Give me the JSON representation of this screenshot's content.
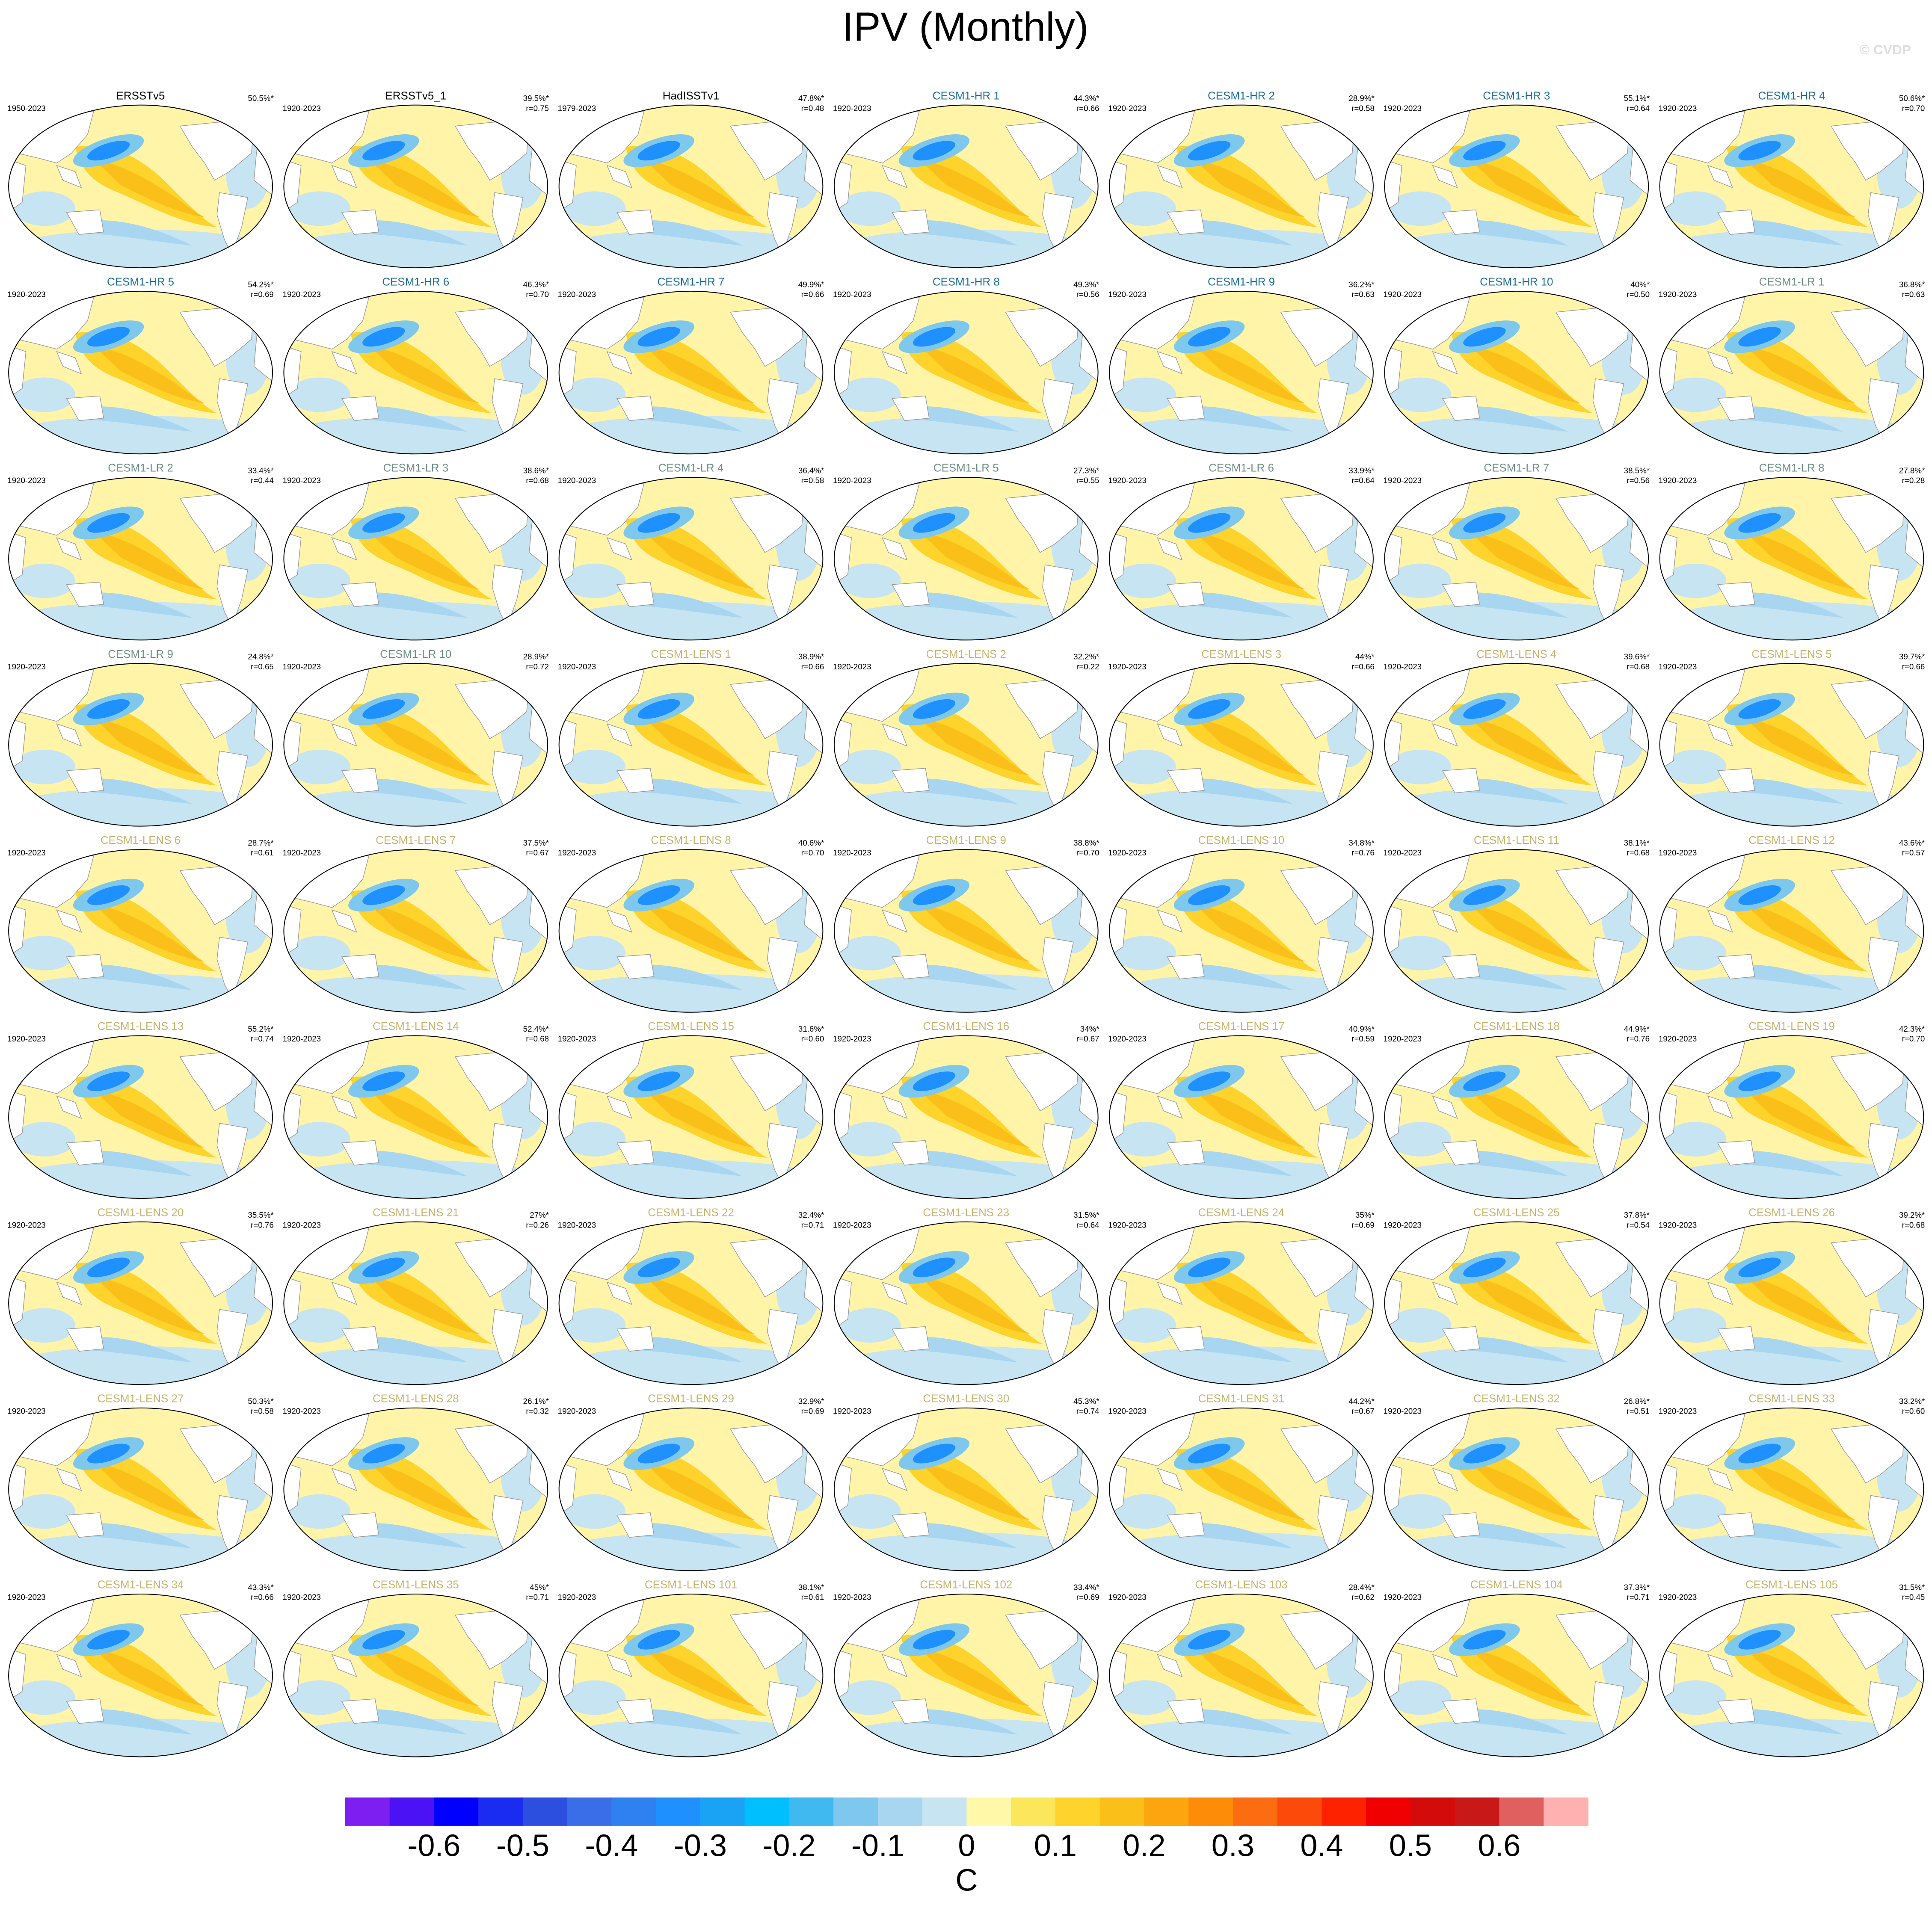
{
  "title": "IPV (Monthly)",
  "watermark": "© CVDP",
  "panels": [
    {
      "title": "ERSSTv5",
      "period": "1950-2023",
      "pct": "50.5%*",
      "color": "#000000"
    },
    {
      "title": "ERSSTv5_1",
      "period": "1920-2023",
      "pct": "39.5%*",
      "r": "r=0.75",
      "color": "#000000"
    },
    {
      "title": "HadISSTv1",
      "period": "1979-2023",
      "pct": "47.8%*",
      "r": "r=0.48",
      "color": "#000000"
    },
    {
      "title": "CESM1-HR 1",
      "period": "1920-2023",
      "pct": "44.3%*",
      "r": "r=0.66",
      "color": "#1f6f9a"
    },
    {
      "title": "CESM1-HR 2",
      "period": "1920-2023",
      "pct": "28.9%*",
      "r": "r=0.58",
      "color": "#1f6f9a"
    },
    {
      "title": "CESM1-HR 3",
      "period": "1920-2023",
      "pct": "55.1%*",
      "r": "r=0.64",
      "color": "#1f6f9a"
    },
    {
      "title": "CESM1-HR 4",
      "period": "1920-2023",
      "pct": "50.6%*",
      "r": "r=0.70",
      "color": "#1f6f9a"
    },
    {
      "title": "CESM1-HR 5",
      "period": "1920-2023",
      "pct": "54.2%*",
      "r": "r=0.69",
      "color": "#1f6f9a"
    },
    {
      "title": "CESM1-HR 6",
      "period": "1920-2023",
      "pct": "46.3%*",
      "r": "r=0.70",
      "color": "#1f6f9a"
    },
    {
      "title": "CESM1-HR 7",
      "period": "1920-2023",
      "pct": "49.9%*",
      "r": "r=0.66",
      "color": "#1f6f9a"
    },
    {
      "title": "CESM1-HR 8",
      "period": "1920-2023",
      "pct": "49.3%*",
      "r": "r=0.56",
      "color": "#1f6f9a"
    },
    {
      "title": "CESM1-HR 9",
      "period": "1920-2023",
      "pct": "36.2%*",
      "r": "r=0.63",
      "color": "#1f6f9a"
    },
    {
      "title": "CESM1-HR 10",
      "period": "1920-2023",
      "pct": "40%*",
      "r": "r=0.50",
      "color": "#1f6f9a"
    },
    {
      "title": "CESM1-LR 1",
      "period": "1920-2023",
      "pct": "36.8%*",
      "r": "r=0.63",
      "color": "#6e8f86"
    },
    {
      "title": "CESM1-LR 2",
      "period": "1920-2023",
      "pct": "33.4%*",
      "r": "r=0.44",
      "color": "#6e8f86"
    },
    {
      "title": "CESM1-LR 3",
      "period": "1920-2023",
      "pct": "38.6%*",
      "r": "r=0.68",
      "color": "#6e8f86"
    },
    {
      "title": "CESM1-LR 4",
      "period": "1920-2023",
      "pct": "36.4%*",
      "r": "r=0.58",
      "color": "#6e8f86"
    },
    {
      "title": "CESM1-LR 5",
      "period": "1920-2023",
      "pct": "27.3%*",
      "r": "r=0.55",
      "color": "#6e8f86"
    },
    {
      "title": "CESM1-LR 6",
      "period": "1920-2023",
      "pct": "33.9%*",
      "r": "r=0.64",
      "color": "#6e8f86"
    },
    {
      "title": "CESM1-LR 7",
      "period": "1920-2023",
      "pct": "38.5%*",
      "r": "r=0.56",
      "color": "#6e8f86"
    },
    {
      "title": "CESM1-LR 8",
      "period": "1920-2023",
      "pct": "27.8%*",
      "r": "r=0.28",
      "color": "#6e8f86"
    },
    {
      "title": "CESM1-LR 9",
      "period": "1920-2023",
      "pct": "24.8%*",
      "r": "r=0.65",
      "color": "#6e8f86"
    },
    {
      "title": "CESM1-LR 10",
      "period": "1920-2023",
      "pct": "28.9%*",
      "r": "r=0.72",
      "color": "#6e8f86"
    },
    {
      "title": "CESM1-LENS 1",
      "period": "1920-2023",
      "pct": "38.9%*",
      "r": "r=0.66",
      "color": "#c8b46e"
    },
    {
      "title": "CESM1-LENS 2",
      "period": "1920-2023",
      "pct": "32.2%*",
      "r": "r=0.22",
      "color": "#c8b46e"
    },
    {
      "title": "CESM1-LENS 3",
      "period": "1920-2023",
      "pct": "44%*",
      "r": "r=0.66",
      "color": "#c8b46e"
    },
    {
      "title": "CESM1-LENS 4",
      "period": "1920-2023",
      "pct": "39.6%*",
      "r": "r=0.68",
      "color": "#c8b46e"
    },
    {
      "title": "CESM1-LENS 5",
      "period": "1920-2023",
      "pct": "39.7%*",
      "r": "r=0.66",
      "color": "#c8b46e"
    },
    {
      "title": "CESM1-LENS 6",
      "period": "1920-2023",
      "pct": "28.7%*",
      "r": "r=0.61",
      "color": "#c8b46e"
    },
    {
      "title": "CESM1-LENS 7",
      "period": "1920-2023",
      "pct": "37.5%*",
      "r": "r=0.67",
      "color": "#c8b46e"
    },
    {
      "title": "CESM1-LENS 8",
      "period": "1920-2023",
      "pct": "40.6%*",
      "r": "r=0.70",
      "color": "#c8b46e"
    },
    {
      "title": "CESM1-LENS 9",
      "period": "1920-2023",
      "pct": "38.8%*",
      "r": "r=0.70",
      "color": "#c8b46e"
    },
    {
      "title": "CESM1-LENS 10",
      "period": "1920-2023",
      "pct": "34.8%*",
      "r": "r=0.76",
      "color": "#c8b46e"
    },
    {
      "title": "CESM1-LENS 11",
      "period": "1920-2023",
      "pct": "38.1%*",
      "r": "r=0.68",
      "color": "#c8b46e"
    },
    {
      "title": "CESM1-LENS 12",
      "period": "1920-2023",
      "pct": "43.6%*",
      "r": "r=0.57",
      "color": "#c8b46e"
    },
    {
      "title": "CESM1-LENS 13",
      "period": "1920-2023",
      "pct": "55.2%*",
      "r": "r=0.74",
      "color": "#c8b46e"
    },
    {
      "title": "CESM1-LENS 14",
      "period": "1920-2023",
      "pct": "52.4%*",
      "r": "r=0.68",
      "color": "#c8b46e"
    },
    {
      "title": "CESM1-LENS 15",
      "period": "1920-2023",
      "pct": "31.6%*",
      "r": "r=0.60",
      "color": "#c8b46e"
    },
    {
      "title": "CESM1-LENS 16",
      "period": "1920-2023",
      "pct": "34%*",
      "r": "r=0.67",
      "color": "#c8b46e"
    },
    {
      "title": "CESM1-LENS 17",
      "period": "1920-2023",
      "pct": "40.9%*",
      "r": "r=0.59",
      "color": "#c8b46e"
    },
    {
      "title": "CESM1-LENS 18",
      "period": "1920-2023",
      "pct": "44.9%*",
      "r": "r=0.76",
      "color": "#c8b46e"
    },
    {
      "title": "CESM1-LENS 19",
      "period": "1920-2023",
      "pct": "42.3%*",
      "r": "r=0.70",
      "color": "#c8b46e"
    },
    {
      "title": "CESM1-LENS 20",
      "period": "1920-2023",
      "pct": "35.5%*",
      "r": "r=0.76",
      "color": "#c8b46e"
    },
    {
      "title": "CESM1-LENS 21",
      "period": "1920-2023",
      "pct": "27%*",
      "r": "r=0.26",
      "color": "#c8b46e"
    },
    {
      "title": "CESM1-LENS 22",
      "period": "1920-2023",
      "pct": "32.4%*",
      "r": "r=0.71",
      "color": "#c8b46e"
    },
    {
      "title": "CESM1-LENS 23",
      "period": "1920-2023",
      "pct": "31.5%*",
      "r": "r=0.64",
      "color": "#c8b46e"
    },
    {
      "title": "CESM1-LENS 24",
      "period": "1920-2023",
      "pct": "35%*",
      "r": "r=0.69",
      "color": "#c8b46e"
    },
    {
      "title": "CESM1-LENS 25",
      "period": "1920-2023",
      "pct": "37.8%*",
      "r": "r=0.54",
      "color": "#c8b46e"
    },
    {
      "title": "CESM1-LENS 26",
      "period": "1920-2023",
      "pct": "39.2%*",
      "r": "r=0.68",
      "color": "#c8b46e"
    },
    {
      "title": "CESM1-LENS 27",
      "period": "1920-2023",
      "pct": "50.3%*",
      "r": "r=0.58",
      "color": "#c8b46e"
    },
    {
      "title": "CESM1-LENS 28",
      "period": "1920-2023",
      "pct": "26.1%*",
      "r": "r=0.32",
      "color": "#c8b46e"
    },
    {
      "title": "CESM1-LENS 29",
      "period": "1920-2023",
      "pct": "32.9%*",
      "r": "r=0.69",
      "color": "#c8b46e"
    },
    {
      "title": "CESM1-LENS 30",
      "period": "1920-2023",
      "pct": "45.3%*",
      "r": "r=0.74",
      "color": "#c8b46e"
    },
    {
      "title": "CESM1-LENS 31",
      "period": "1920-2023",
      "pct": "44.2%*",
      "r": "r=0.67",
      "color": "#c8b46e"
    },
    {
      "title": "CESM1-LENS 32",
      "period": "1920-2023",
      "pct": "26.8%*",
      "r": "r=0.51",
      "color": "#c8b46e"
    },
    {
      "title": "CESM1-LENS 33",
      "period": "1920-2023",
      "pct": "33.2%*",
      "r": "r=0.60",
      "color": "#c8b46e"
    },
    {
      "title": "CESM1-LENS 34",
      "period": "1920-2023",
      "pct": "43.3%*",
      "r": "r=0.66",
      "color": "#c8b46e"
    },
    {
      "title": "CESM1-LENS 35",
      "period": "1920-2023",
      "pct": "45%*",
      "r": "r=0.71",
      "color": "#c8b46e"
    },
    {
      "title": "CESM1-LENS 101",
      "period": "1920-2023",
      "pct": "38.1%*",
      "r": "r=0.61",
      "color": "#c8b46e"
    },
    {
      "title": "CESM1-LENS 102",
      "period": "1920-2023",
      "pct": "33.4%*",
      "r": "r=0.69",
      "color": "#c8b46e"
    },
    {
      "title": "CESM1-LENS 103",
      "period": "1920-2023",
      "pct": "28.4%*",
      "r": "r=0.62",
      "color": "#c8b46e"
    },
    {
      "title": "CESM1-LENS 104",
      "period": "1920-2023",
      "pct": "37.3%*",
      "r": "r=0.71",
      "color": "#c8b46e"
    },
    {
      "title": "CESM1-LENS 105",
      "period": "1920-2023",
      "pct": "31.5%*",
      "r": "r=0.45",
      "color": "#c8b46e"
    }
  ],
  "colorbar": {
    "label": "C",
    "lim": [
      -0.7,
      0.7
    ],
    "ticks": [
      -0.6,
      -0.5,
      -0.4,
      -0.3,
      -0.2,
      -0.1,
      0,
      0.1,
      0.2,
      0.3,
      0.4,
      0.5,
      0.6
    ],
    "colors": [
      "#7d1ff0",
      "#4b12f5",
      "#0000ff",
      "#1a2cf0",
      "#2c4fe0",
      "#3a6ee8",
      "#2f80f0",
      "#1e90ff",
      "#1aa3f5",
      "#00bfff",
      "#40b8f0",
      "#7ec8ee",
      "#a8d6f0",
      "#c6e4f2",
      "#fff8a8",
      "#fce75a",
      "#fdd32c",
      "#fbbf1a",
      "#fca50f",
      "#fd8c08",
      "#fb6d10",
      "#fc4a0a",
      "#ff2200",
      "#f00000",
      "#d40b0b",
      "#c81818",
      "#e06060",
      "#ffb0b0"
    ]
  }
}
